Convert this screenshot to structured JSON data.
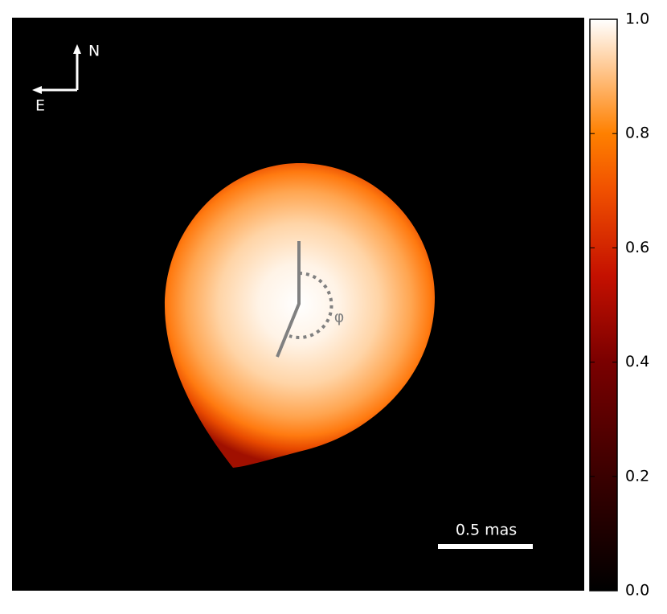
{
  "chart_data": {
    "type": "image",
    "annotations": {
      "north": "N",
      "east": "E",
      "angle": "φ",
      "scale_bar": "0.5 mas"
    },
    "colorbar": {
      "clim": [
        0,
        1
      ],
      "ticks": [
        {
          "value": 0,
          "label": "0.0"
        },
        0.2,
        0.4,
        0.6,
        0.8,
        {
          "value": 1,
          "label": "1.0"
        }
      ]
    }
  }
}
